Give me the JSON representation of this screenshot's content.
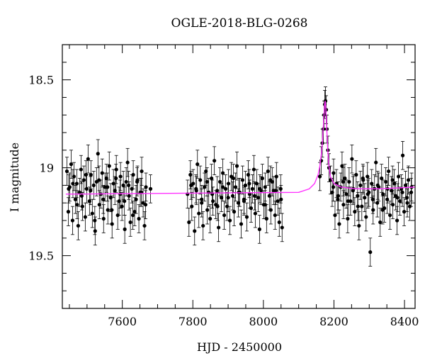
{
  "chart_data": {
    "type": "scatter",
    "title": "OGLE-2018-BLG-0268",
    "xlabel": "HJD - 2450000",
    "ylabel": "I magnitude",
    "xlim": [
      7430,
      8430
    ],
    "ylim": [
      19.8,
      18.3
    ],
    "y_inverted": true,
    "x_ticks": [
      7600,
      7800,
      8000,
      8200,
      8400
    ],
    "y_ticks": [
      18.5,
      19,
      19.5
    ],
    "x_tick_labels": [
      "7600",
      "7800",
      "8000",
      "8200",
      "8400"
    ],
    "y_tick_labels": [
      "18.5",
      "19",
      "19.5"
    ],
    "colors": {
      "data": "#000000",
      "model": "#ff33ff"
    },
    "model": {
      "name": "",
      "baseline": 19.13,
      "x": [
        7440,
        8100,
        8130,
        8145,
        8155,
        8160,
        8165,
        8168,
        8171,
        8173,
        8175,
        8177,
        8179,
        8182,
        8185,
        8190,
        8200,
        8220,
        8260,
        8330,
        8430
      ],
      "y": [
        19.15,
        19.14,
        19.12,
        19.09,
        19.04,
        18.99,
        18.91,
        18.83,
        18.73,
        18.65,
        18.62,
        18.66,
        18.75,
        18.88,
        18.98,
        19.05,
        19.09,
        19.11,
        19.12,
        19.12,
        19.11
      ]
    },
    "data_series": [
      {
        "name": "",
        "x": [
          7443,
          7447,
          7451,
          7455,
          7459,
          7463,
          7467,
          7471,
          7475,
          7479,
          7483,
          7487,
          7491,
          7495,
          7499,
          7503,
          7507,
          7511,
          7515,
          7519,
          7523,
          7527,
          7531,
          7535,
          7539,
          7543,
          7547,
          7551,
          7555,
          7559,
          7563,
          7567,
          7571,
          7575,
          7579,
          7583,
          7587,
          7591,
          7595,
          7599,
          7603,
          7607,
          7611,
          7615,
          7619,
          7623,
          7627,
          7631,
          7635,
          7639,
          7643,
          7647,
          7651,
          7655,
          7659,
          7663,
          7667,
          7448,
          7460,
          7472,
          7485,
          7497,
          7510,
          7522,
          7534,
          7546,
          7558,
          7570,
          7582,
          7594,
          7606,
          7618,
          7630,
          7642,
          7654,
          7666,
          7680
        ],
        "y": [
          19.02,
          19.25,
          19.11,
          18.98,
          19.3,
          19.05,
          19.18,
          19.09,
          19.33,
          19.14,
          19.01,
          19.22,
          19.07,
          19.28,
          19.12,
          18.95,
          19.19,
          19.04,
          19.26,
          19.1,
          19.36,
          19.08,
          18.92,
          19.21,
          19.15,
          19.03,
          19.29,
          19.11,
          19.06,
          19.24,
          18.99,
          19.17,
          19.32,
          19.09,
          19.13,
          19.01,
          19.27,
          19.19,
          19.05,
          19.22,
          19.1,
          19.35,
          19.08,
          18.97,
          19.16,
          19.31,
          19.12,
          19.04,
          19.25,
          19.18,
          19.07,
          19.29,
          19.14,
          19.02,
          19.2,
          19.33,
          19.11,
          19.12,
          19.09,
          19.21,
          19.16,
          19.04,
          19.13,
          19.3,
          19.07,
          19.18,
          19.11,
          19.24,
          19.06,
          19.15,
          19.19,
          19.1,
          19.27,
          19.08,
          19.14,
          19.21,
          19.12
        ]
      },
      {
        "name": "",
        "x": [
          7785,
          7789,
          7793,
          7797,
          7801,
          7805,
          7809,
          7813,
          7817,
          7821,
          7825,
          7829,
          7833,
          7837,
          7841,
          7845,
          7849,
          7853,
          7857,
          7861,
          7865,
          7869,
          7873,
          7877,
          7881,
          7885,
          7889,
          7893,
          7897,
          7901,
          7905,
          7909,
          7913,
          7917,
          7921,
          7925,
          7929,
          7933,
          7937,
          7941,
          7945,
          7949,
          7953,
          7957,
          7961,
          7965,
          7969,
          7973,
          7977,
          7981,
          7985,
          7989,
          7993,
          7997,
          8001,
          8005,
          8009,
          8013,
          8017,
          8021,
          8025,
          8029,
          8033,
          8037,
          8041,
          8045,
          8049,
          8053,
          7795,
          7810,
          7825,
          7840,
          7855,
          7870,
          7885,
          7900,
          7915,
          7930,
          7945,
          7960,
          7975,
          7990,
          8005,
          8020,
          8035,
          8050
        ],
        "y": [
          19.15,
          19.31,
          19.04,
          19.22,
          19.09,
          19.36,
          19.12,
          18.98,
          19.26,
          19.07,
          19.18,
          19.33,
          19.11,
          19.02,
          19.24,
          19.14,
          19.29,
          19.06,
          19.19,
          18.96,
          19.21,
          19.13,
          19.34,
          19.08,
          19.17,
          19.03,
          19.27,
          19.12,
          19.22,
          19.09,
          19.3,
          19.05,
          19.16,
          19.25,
          19.11,
          18.99,
          19.2,
          19.14,
          19.32,
          19.07,
          19.18,
          19.1,
          19.28,
          19.04,
          19.15,
          19.23,
          19.12,
          19.01,
          19.26,
          19.09,
          19.17,
          19.35,
          19.13,
          19.06,
          19.21,
          19.11,
          19.29,
          19.02,
          19.16,
          19.24,
          19.08,
          19.13,
          19.27,
          19.05,
          19.19,
          19.31,
          19.12,
          19.34,
          19.1,
          19.13,
          19.2,
          19.08,
          19.15,
          19.22,
          19.11,
          19.17,
          19.06,
          19.14,
          19.19,
          19.09,
          19.16,
          19.12,
          19.21,
          19.07,
          19.13,
          19.18
        ]
      },
      {
        "name": "",
        "x": [
          8160,
          8164,
          8167,
          8170,
          8172,
          8174,
          8176,
          8178,
          8180,
          8183,
          8186,
          8190
        ],
        "y": [
          19.05,
          18.96,
          18.86,
          18.78,
          18.7,
          18.64,
          18.62,
          18.67,
          18.78,
          18.9,
          19.0,
          19.07
        ]
      },
      {
        "name": "",
        "x": [
          8195,
          8199,
          8203,
          8207,
          8211,
          8215,
          8219,
          8223,
          8227,
          8231,
          8235,
          8239,
          8243,
          8247,
          8251,
          8255,
          8259,
          8263,
          8267,
          8271,
          8275,
          8279,
          8283,
          8287,
          8291,
          8295,
          8299,
          8303,
          8307,
          8311,
          8315,
          8319,
          8323,
          8327,
          8331,
          8335,
          8339,
          8343,
          8347,
          8351,
          8355,
          8359,
          8363,
          8367,
          8371,
          8375,
          8379,
          8383,
          8387,
          8391,
          8395,
          8399,
          8403,
          8407,
          8411,
          8415,
          8419,
          8198,
          8212,
          8226,
          8240,
          8254,
          8268,
          8282,
          8296,
          8310,
          8324,
          8338,
          8352,
          8366,
          8380,
          8394,
          8408,
          8420
        ],
        "y": [
          19.14,
          19.03,
          19.27,
          19.09,
          19.18,
          19.32,
          19.11,
          18.99,
          19.21,
          19.06,
          19.15,
          19.29,
          19.08,
          19.19,
          18.95,
          19.12,
          19.25,
          19.04,
          19.16,
          19.33,
          19.1,
          19.22,
          19.07,
          19.17,
          19.28,
          19.05,
          19.14,
          19.48,
          19.09,
          19.24,
          19.12,
          18.97,
          19.2,
          19.11,
          19.31,
          19.06,
          19.15,
          19.23,
          19.08,
          19.18,
          19.02,
          19.27,
          19.13,
          19.21,
          19.09,
          19.16,
          19.3,
          19.05,
          19.19,
          19.12,
          18.93,
          19.25,
          19.1,
          19.17,
          19.07,
          19.22,
          19.14,
          19.11,
          19.16,
          19.08,
          19.19,
          19.13,
          19.22,
          19.06,
          19.15,
          19.18,
          19.1,
          19.24,
          19.12,
          19.07,
          19.17,
          19.14,
          19.2,
          19.11
        ]
      }
    ],
    "error_bar": 0.08
  }
}
